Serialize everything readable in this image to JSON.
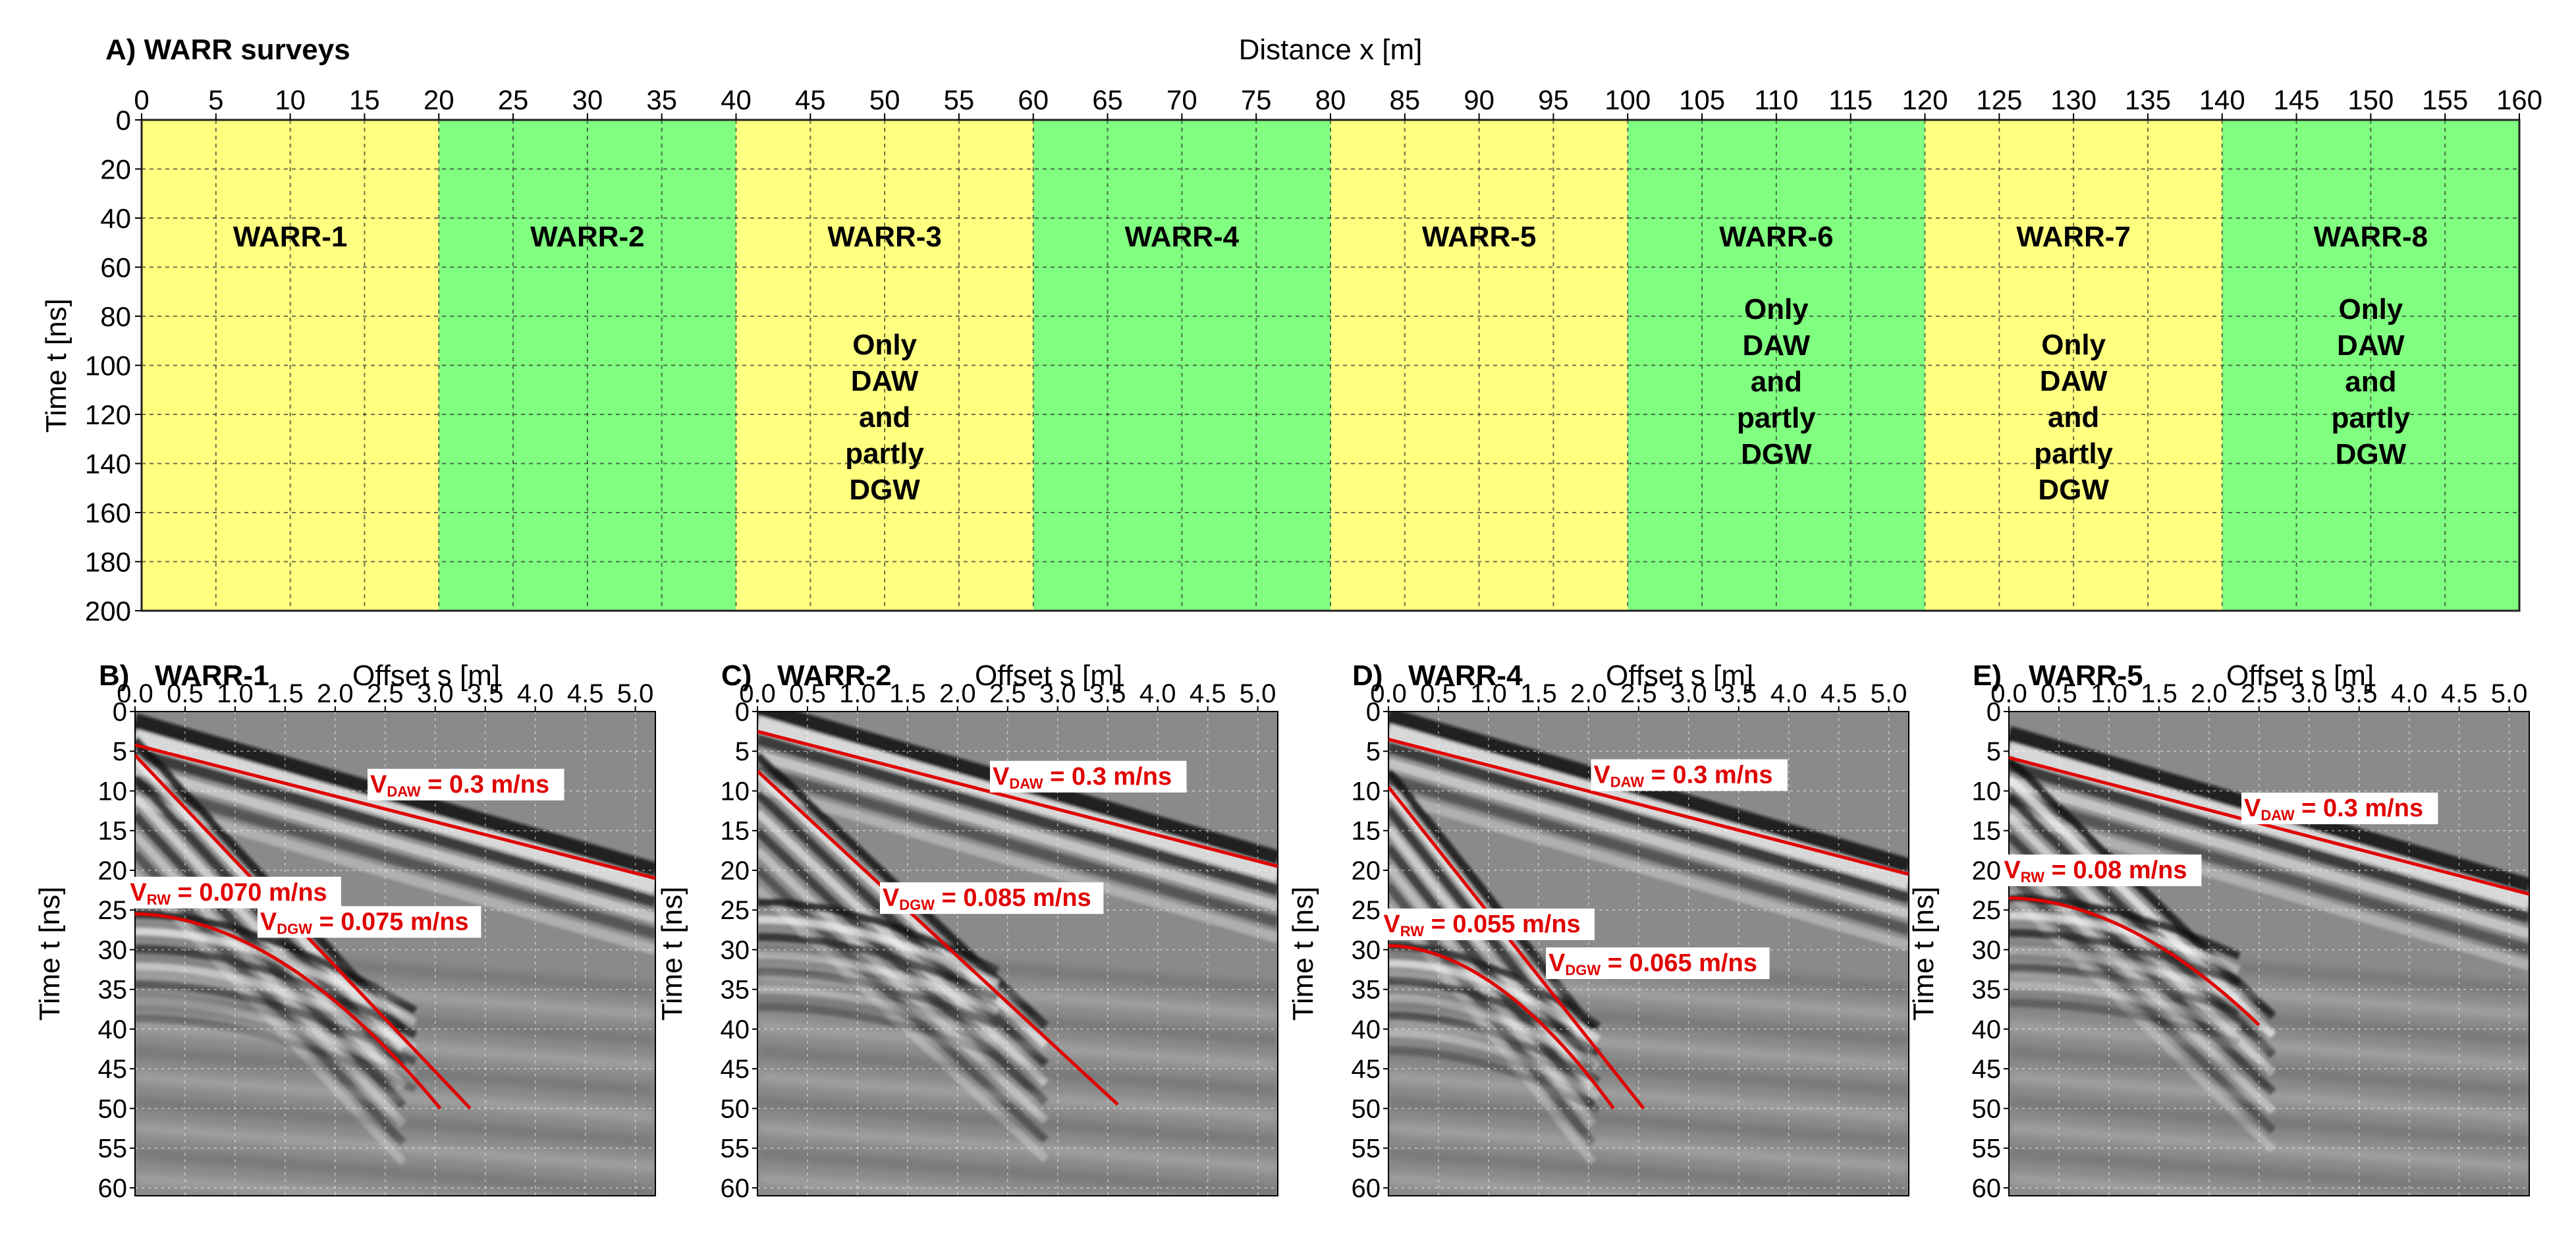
{
  "panel_a": {
    "label": "A) WARR surveys",
    "xlabel": "Distance  x [m]",
    "ylabel": "Time  t [ns]",
    "x_ticks": [
      "0",
      "5",
      "10",
      "15",
      "20",
      "25",
      "30",
      "35",
      "40",
      "45",
      "50",
      "55",
      "60",
      "65",
      "70",
      "75",
      "80",
      "85",
      "90",
      "95",
      "100",
      "105",
      "110",
      "115",
      "120",
      "125",
      "130",
      "135",
      "140",
      "145",
      "150",
      "155",
      "160"
    ],
    "y_ticks": [
      "0",
      "20",
      "40",
      "60",
      "80",
      "100",
      "120",
      "140",
      "160",
      "180",
      "200"
    ],
    "surveys": [
      {
        "name": "WARR-1",
        "note": [],
        "color": "#ffff80"
      },
      {
        "name": "WARR-2",
        "note": [],
        "color": "#80ff80"
      },
      {
        "name": "WARR-3",
        "note": [
          "Only",
          "DAW",
          "and",
          "partly",
          "DGW"
        ],
        "color": "#ffff80"
      },
      {
        "name": "WARR-4",
        "note": [],
        "color": "#80ff80"
      },
      {
        "name": "WARR-5",
        "note": [],
        "color": "#ffff80"
      },
      {
        "name": "WARR-6",
        "note": [
          "Only",
          "DAW",
          "and",
          "partly",
          "DGW"
        ],
        "color": "#80ff80"
      },
      {
        "name": "WARR-7",
        "note": [
          "Only",
          "DAW",
          "and",
          "partly",
          "DGW"
        ],
        "color": "#ffff80"
      },
      {
        "name": "WARR-8",
        "note": [
          "Only",
          "DAW",
          "and",
          "partly",
          "DGW"
        ],
        "color": "#80ff80"
      }
    ]
  },
  "gather_axes": {
    "xlabel": "Offset  s [m]",
    "ylabel": "Time  t [ns]",
    "x_ticks": [
      "0.0",
      "0.5",
      "1.0",
      "1.5",
      "2.0",
      "2.5",
      "3.0",
      "3.5",
      "4.0",
      "4.5",
      "5.0"
    ],
    "y_ticks": [
      "0",
      "5",
      "10",
      "15",
      "20",
      "25",
      "30",
      "35",
      "40",
      "45",
      "50",
      "55",
      "60"
    ]
  },
  "panels": [
    {
      "letter": "B)",
      "name": "WARR-1",
      "annotations": [
        {
          "V": "V",
          "sub": "DAW",
          "value": " = 0.3 m/ns"
        },
        {
          "V": "V",
          "sub": "RW",
          "value": " = 0.070 m/ns"
        },
        {
          "V": "V",
          "sub": "DGW",
          "value": " = 0.075 m/ns"
        }
      ]
    },
    {
      "letter": "C)",
      "name": "WARR-2",
      "annotations": [
        {
          "V": "V",
          "sub": "DAW",
          "value": " = 0.3 m/ns"
        },
        {
          "V": "V",
          "sub": "DGW",
          "value": " = 0.085 m/ns"
        }
      ]
    },
    {
      "letter": "D)",
      "name": "WARR-4",
      "annotations": [
        {
          "V": "V",
          "sub": "DAW",
          "value": " = 0.3 m/ns"
        },
        {
          "V": "V",
          "sub": "RW",
          "value": " = 0.055 m/ns"
        },
        {
          "V": "V",
          "sub": "DGW",
          "value": " = 0.065 m/ns"
        }
      ]
    },
    {
      "letter": "E)",
      "name": "WARR-5",
      "annotations": [
        {
          "V": "V",
          "sub": "DAW",
          "value": " = 0.3 m/ns"
        },
        {
          "V": "V",
          "sub": "RW",
          "value": " = 0.08 m/ns"
        }
      ]
    }
  ],
  "colors": {
    "survey_yellow": "#ffff80",
    "survey_green": "#80ff80",
    "fit_line": "#e00000",
    "radargram_bg": "#8a8a8a"
  }
}
